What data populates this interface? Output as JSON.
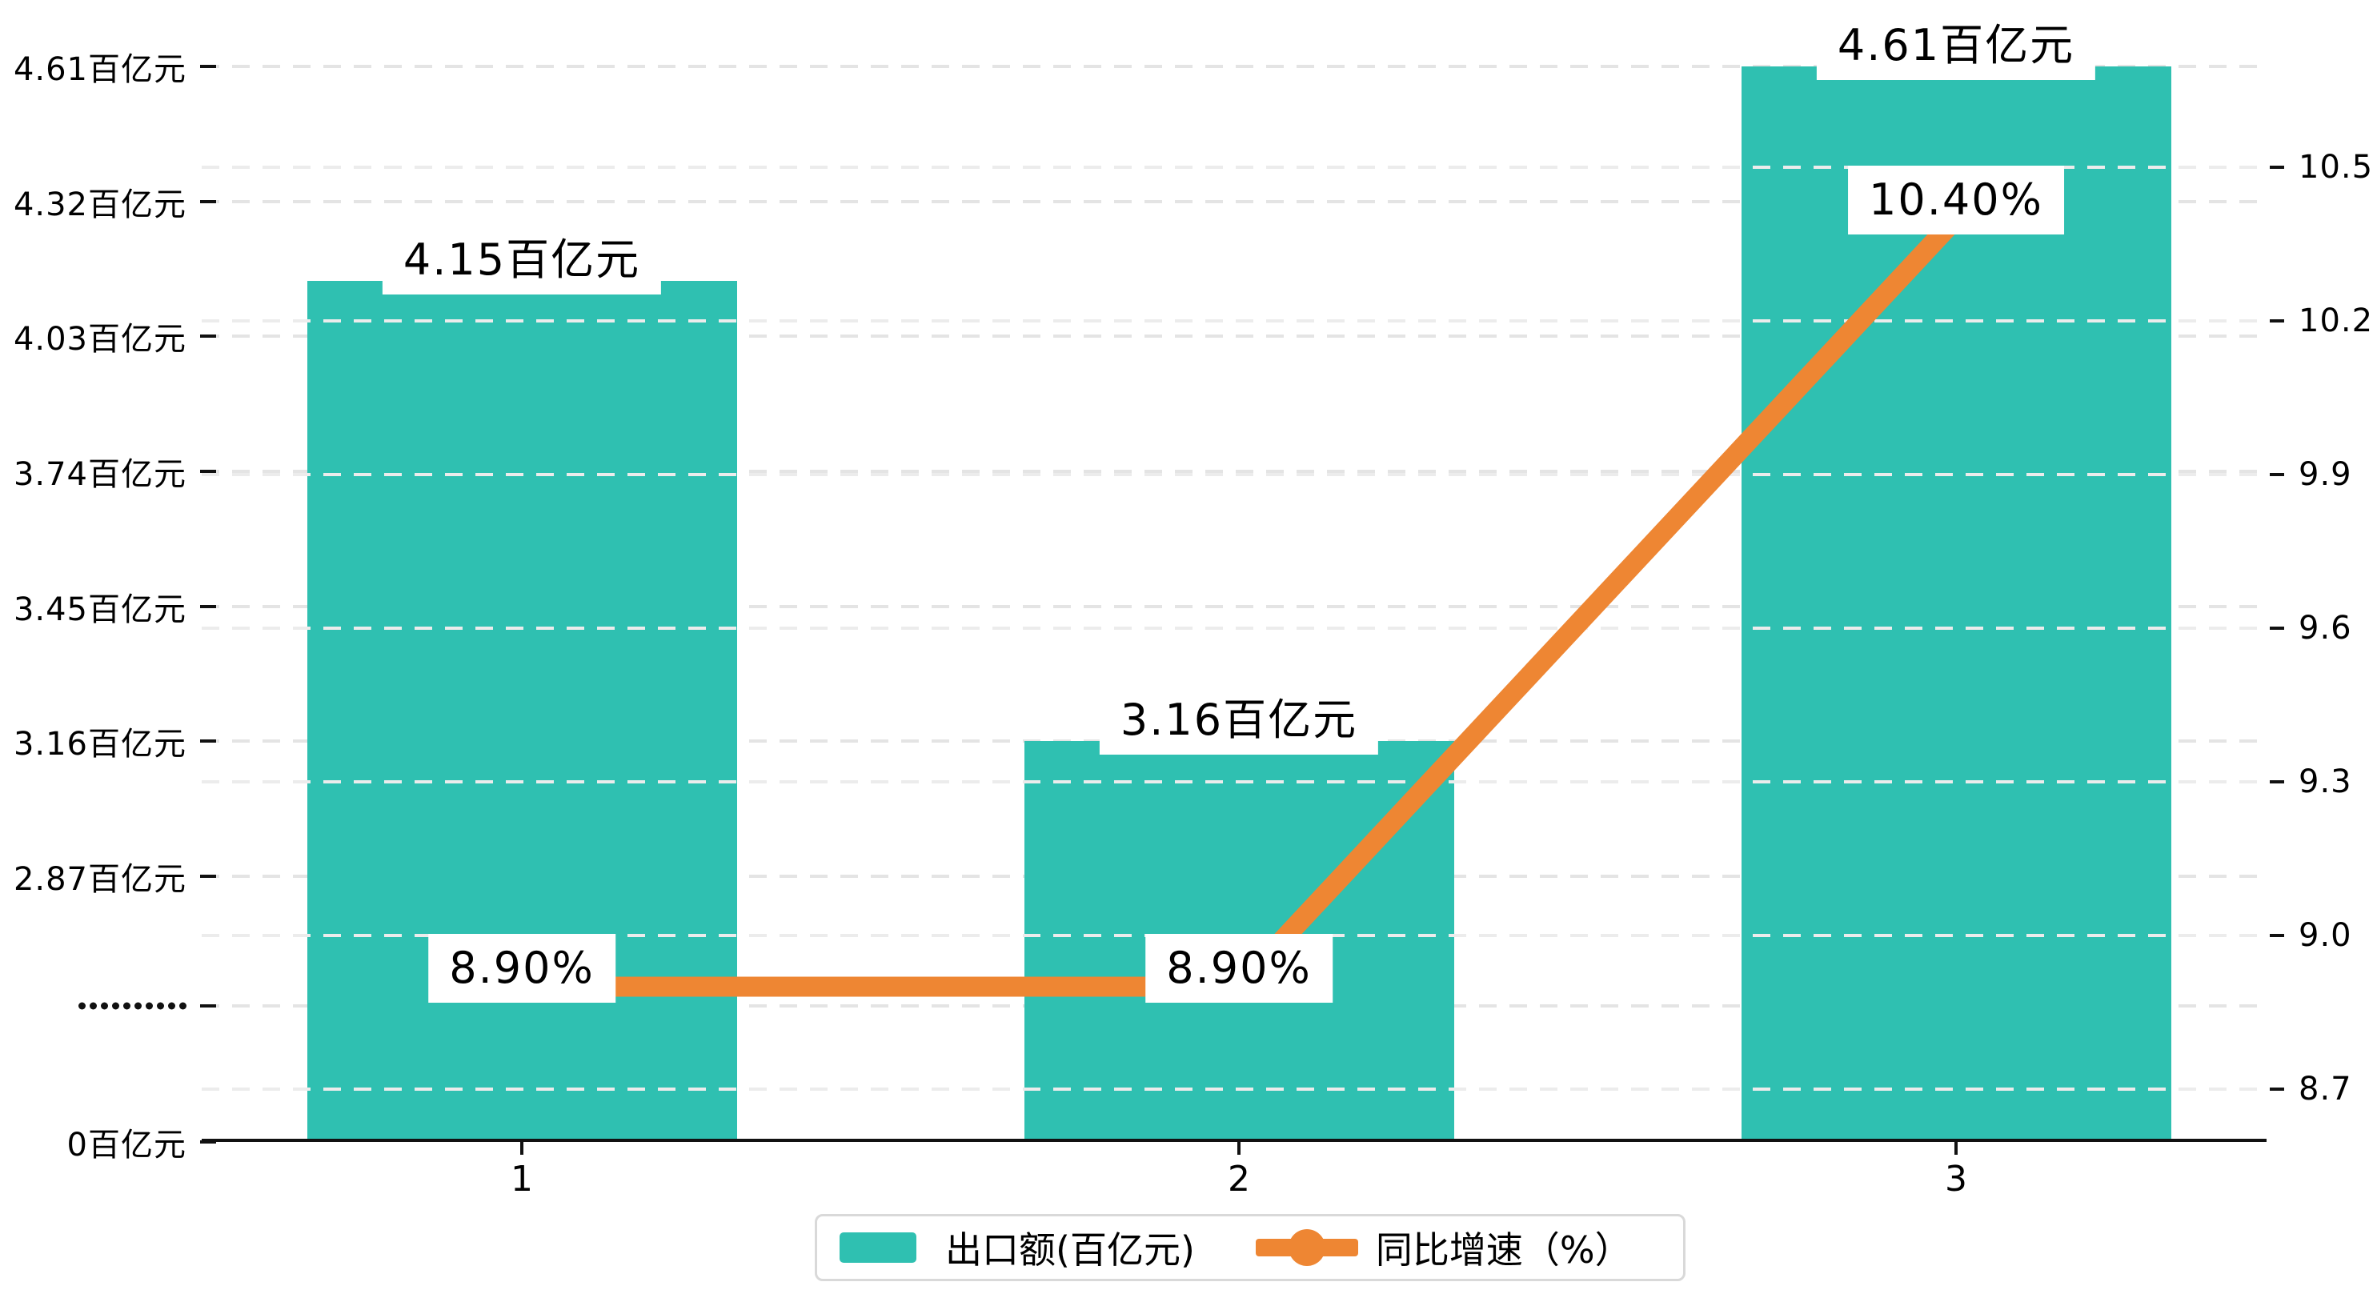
{
  "chart_data": {
    "type": "combo-bar-line",
    "categories": [
      "1",
      "2",
      "3"
    ],
    "series": [
      {
        "name": "出口额(百亿元)",
        "type": "bar",
        "values": [
          4.15,
          3.16,
          4.61
        ],
        "labels": [
          "4.15百亿元",
          "3.16百亿元",
          "4.61百亿元"
        ],
        "color": "#2FC0B1"
      },
      {
        "name": "同比增速（%）",
        "type": "line",
        "values": [
          8.9,
          8.9,
          10.4
        ],
        "labels": [
          "8.90%",
          "8.90%",
          "10.40%"
        ],
        "color": "#EE8633"
      }
    ],
    "left_axis": {
      "tick_labels": [
        "4.61百亿元",
        "4.32百亿元",
        "4.03百亿元",
        "3.74百亿元",
        "3.45百亿元",
        "3.16百亿元",
        "2.87百亿元",
        "·········",
        "0百亿元"
      ],
      "tick_values": [
        4.61,
        4.32,
        4.03,
        3.74,
        3.45,
        3.16,
        2.87,
        null,
        0
      ],
      "break_symbol_dots": 10
    },
    "right_axis": {
      "tick_labels": [
        "10.5",
        "10.2",
        "9.9",
        "9.6",
        "9.3",
        "9.0",
        "8.7"
      ],
      "tick_values": [
        10.5,
        10.2,
        9.9,
        9.6,
        9.3,
        9.0,
        8.7
      ],
      "min": 8.7,
      "max": 10.5,
      "step": 0.3
    },
    "legend": {
      "items": [
        {
          "label": "出口额(百亿元)",
          "swatch": "bar-swatch",
          "color": "#2FC0B1"
        },
        {
          "label": "同比增速（%）",
          "swatch": "line-marker",
          "color": "#EE8633"
        }
      ]
    },
    "grid": {
      "dashed": true,
      "under_color": "#e4e4e4",
      "over_color": "#ececec"
    },
    "colors": {
      "bar": "#2FC0B1",
      "line": "#EE8633",
      "axis": "#111111",
      "label_bg": "#ffffff",
      "text": "#000000"
    }
  }
}
